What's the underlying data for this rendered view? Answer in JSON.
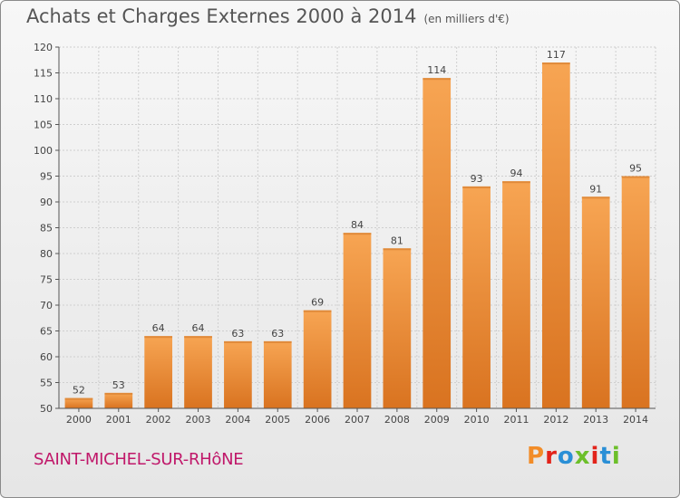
{
  "header": {
    "title": "Achats et Charges Externes 2000 à 2014",
    "unit": "(en milliers d'€)"
  },
  "footer": {
    "commune": "SAINT-MICHEL-SUR-RHôNE",
    "logo_text": "Proxiti"
  },
  "colors": {
    "bar_light": "#f7a553",
    "bar_dark": "#d97320",
    "commune": "#c0186a",
    "logo": [
      "#f28c28",
      "#e2231a",
      "#2a8fd6",
      "#6cbf2a",
      "#e2231a",
      "#2a8fd6",
      "#6cbf2a"
    ]
  },
  "chart_data": {
    "type": "bar",
    "title": "Achats et Charges Externes 2000 à 2014",
    "subtitle": "(en milliers d'€)",
    "categories": [
      "2000",
      "2001",
      "2002",
      "2003",
      "2004",
      "2005",
      "2006",
      "2007",
      "2008",
      "2009",
      "2010",
      "2011",
      "2012",
      "2013",
      "2014"
    ],
    "values": [
      52,
      53,
      64,
      64,
      63,
      63,
      69,
      84,
      81,
      114,
      93,
      94,
      117,
      91,
      95
    ],
    "ylim": [
      50,
      120
    ],
    "yticks": [
      50,
      55,
      60,
      65,
      70,
      75,
      80,
      85,
      90,
      95,
      100,
      105,
      110,
      115,
      120
    ],
    "grid": true,
    "xlabel": "",
    "ylabel": ""
  }
}
